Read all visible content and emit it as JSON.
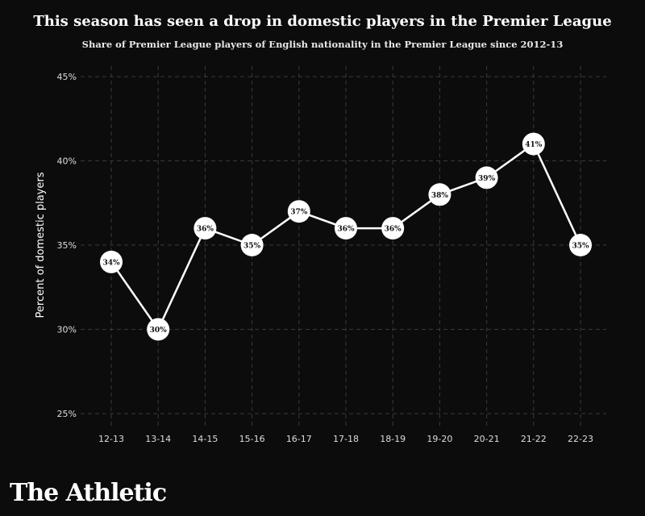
{
  "chart_data": {
    "type": "line",
    "title": "This season has seen a drop in domestic players in the Premier League",
    "subtitle": "Share of Premier League players of English nationality in the Premier League since 2012-13",
    "xlabel": "",
    "ylabel": "Percent of domestic players",
    "categories": [
      "12-13",
      "13-14",
      "14-15",
      "15-16",
      "16-17",
      "17-18",
      "18-19",
      "19-20",
      "20-21",
      "21-22",
      "22-23"
    ],
    "series": [
      {
        "name": "English share",
        "values": [
          34,
          30,
          36,
          35,
          37,
          36,
          36,
          38,
          39,
          41,
          35
        ]
      }
    ],
    "data_labels": [
      "34%",
      "30%",
      "36%",
      "35%",
      "37%",
      "36%",
      "36%",
      "38%",
      "39%",
      "41%",
      "35%"
    ],
    "ylim": [
      25,
      45
    ],
    "yticks": [
      25,
      30,
      35,
      40,
      45
    ],
    "ytick_labels": [
      "25%",
      "30%",
      "35%",
      "40%",
      "45%"
    ],
    "grid": true,
    "colors": {
      "background": "#0c0c0c",
      "line": "#ffffff",
      "marker": "#ffffff",
      "grid": "#3a3a3a"
    }
  },
  "brand": "The Athletic"
}
